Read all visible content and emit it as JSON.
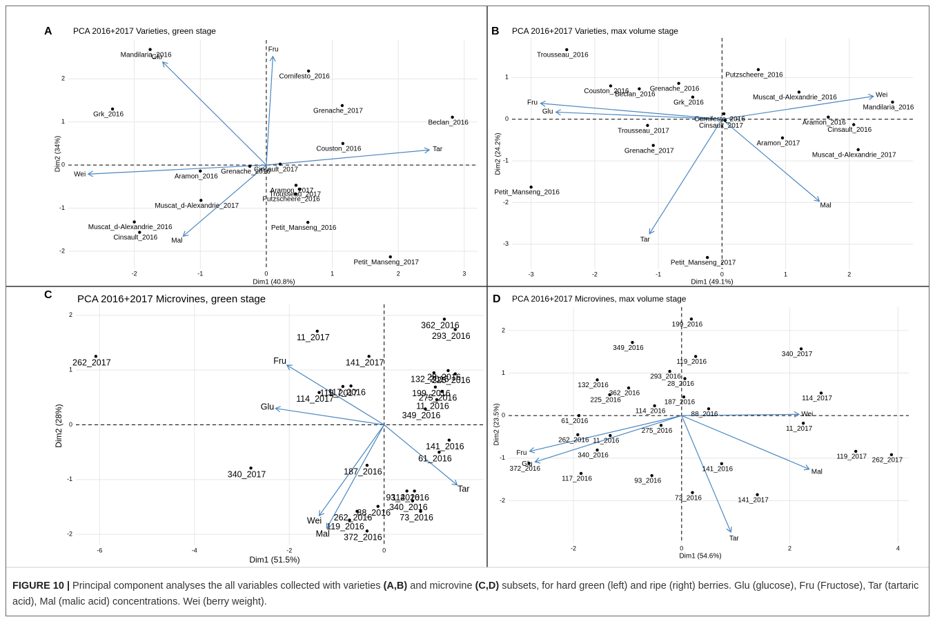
{
  "chart_data": [
    {
      "type": "biplot",
      "panel": "A",
      "title": "PCA 2016+2017 Varieties, green stage",
      "x_label": "Dim1 (40.8%)",
      "y_label": "Dim2 (34%)",
      "xlim": [
        -3,
        3.2
      ],
      "ylim": [
        -2.4,
        2.9
      ],
      "xticks": [
        -2,
        -1,
        0,
        1,
        2,
        3
      ],
      "yticks": [
        -2,
        -1,
        0,
        1,
        2
      ],
      "grid": true,
      "point_color": "#000000",
      "labels": [
        "Mandilaria_2016",
        "Grk_2016",
        "Cornifesto_2016",
        "Grenache_2017",
        "Beclan_2016",
        "Couston_2016",
        "Cinsault_2017",
        "Grenache_2016",
        "Aramon_2016",
        "Aramon_2017",
        "Trousseau_2017",
        "Putzscheere_2016",
        "Muscat_d-Alexandrie_2017",
        "Muscat_d-Alexandrie_2016",
        "Cinsault_2016",
        "Petit_Manseng_2016",
        "Petit_Manseng_2017"
      ],
      "x": [
        -1.76,
        -2.33,
        0.64,
        1.15,
        2.82,
        1.16,
        0.21,
        -0.25,
        -1.0,
        0.45,
        0.5,
        0.44,
        -0.99,
        -2.0,
        -1.92,
        0.63,
        1.88
      ],
      "y": [
        2.68,
        1.3,
        2.18,
        1.38,
        1.11,
        0.5,
        0.02,
        -0.03,
        -0.14,
        -0.47,
        -0.56,
        -0.67,
        -0.82,
        -1.32,
        -1.56,
        -1.33,
        -2.13
      ],
      "loadings": {
        "color": "#4a86c0",
        "labels": [
          "Glu",
          "Fru",
          "Tar",
          "Wei",
          "Mal"
        ],
        "x": [
          -1.57,
          0.1,
          2.47,
          -2.7,
          -1.26
        ],
        "y": [
          2.39,
          2.52,
          0.35,
          -0.21,
          -1.65
        ]
      }
    },
    {
      "type": "biplot",
      "panel": "B",
      "title": "PCA 2016+2017 Varieties, max volume stage",
      "x_label": "Dim1 (49.1%)",
      "y_label": "Dim2 (24.2%)",
      "xlim": [
        -3.3,
        3.0
      ],
      "ylim": [
        -3.6,
        1.95
      ],
      "xticks": [
        -3,
        -2,
        -1,
        0,
        1,
        2
      ],
      "yticks": [
        -3,
        -2,
        -1,
        0,
        1
      ],
      "grid": true,
      "point_color": "#000000",
      "labels": [
        "Trousseau_2016",
        "Couston_2016",
        "Beclan_2016",
        "Grenache_2016",
        "Grk_2016",
        "Putzscheere_2016",
        "Muscat_d-Alexandrie_2016",
        "Mandilaria_2016",
        "Cornifesto_2016",
        "Aramon_2016",
        "Cinsault_2016",
        "Trousseau_2017",
        "Cinsault_2017",
        "Aramon_2017",
        "Muscat_d-Alexandrie_2017",
        "Grenache_2017",
        "Petit_Manseng_2016",
        "Petit_Manseng_2017"
      ],
      "x": [
        -2.44,
        -1.75,
        -1.3,
        -0.68,
        -0.46,
        0.57,
        1.21,
        2.68,
        0.03,
        1.67,
        2.07,
        -1.17,
        0.05,
        0.95,
        2.14,
        -1.08,
        -3.0,
        -0.23
      ],
      "y": [
        1.67,
        0.8,
        0.73,
        0.86,
        0.53,
        1.19,
        0.65,
        0.41,
        0.13,
        0.05,
        -0.13,
        -0.15,
        -0.03,
        -0.45,
        -0.73,
        -0.63,
        -1.63,
        -3.32
      ],
      "loadings": {
        "color": "#4a86c0",
        "labels": [
          "Fru",
          "Glu",
          "Wei",
          "Mal",
          "Tar"
        ],
        "x": [
          -2.85,
          -2.61,
          2.38,
          1.53,
          -1.14
        ],
        "y": [
          0.38,
          0.17,
          0.55,
          -1.97,
          -2.75
        ]
      }
    },
    {
      "type": "biplot",
      "panel": "C",
      "title": "PCA 2016+2017 Microvines, green stage",
      "x_label": "Dim1 (51.5%)",
      "y_label": "Dim2 (28%)",
      "xlim": [
        -6.5,
        2.1
      ],
      "ylim": [
        -2.2,
        2.2
      ],
      "xticks": [
        -6,
        -4,
        -2,
        0
      ],
      "yticks": [
        -2,
        -1,
        0,
        1,
        2
      ],
      "grid": true,
      "point_color": "#000000",
      "labels": [
        "262_2017",
        "11_2017",
        "362_2016",
        "293_2016",
        "141_2017",
        "132_2016",
        "28_2016",
        "225_2016",
        "199_2016",
        "275_2016",
        "11_2016",
        "349_2016",
        "119_2017",
        "117_2016",
        "114_2017",
        "141_2016",
        "61_2016",
        "187_2016",
        "340_2017",
        "93_2016",
        "114_2016",
        "88_2016",
        "340_2016",
        "73_2016",
        "262_2016",
        "119_2016",
        "372_2016"
      ],
      "x": [
        -6.08,
        -1.41,
        1.27,
        1.5,
        -0.32,
        1.05,
        1.35,
        1.5,
        1.08,
        1.22,
        1.11,
        0.87,
        -0.87,
        -0.7,
        -1.37,
        1.37,
        1.16,
        -0.36,
        -2.81,
        0.48,
        0.64,
        -0.13,
        0.6,
        0.77,
        -0.57,
        -0.73,
        -0.36
      ],
      "y": [
        1.25,
        1.71,
        1.93,
        1.74,
        1.25,
        0.95,
        0.99,
        0.93,
        0.69,
        0.61,
        0.46,
        0.29,
        0.7,
        0.71,
        0.59,
        -0.28,
        -0.5,
        -0.74,
        -0.79,
        -1.21,
        -1.21,
        -1.49,
        -1.39,
        -1.58,
        -1.58,
        -1.74,
        -1.94
      ],
      "loadings": {
        "color": "#4a86c0",
        "labels": [
          "Fru",
          "Glu",
          "Tar",
          "Wei",
          "Mal"
        ],
        "x": [
          -2.05,
          -2.29,
          1.54,
          -1.37,
          -1.21
        ],
        "y": [
          1.09,
          0.3,
          -1.1,
          -1.66,
          -1.89
        ]
      }
    },
    {
      "type": "biplot",
      "panel": "D",
      "title": "PCA 2016+2017 Microvines, max volume stage",
      "x_label": "Dim1 (54.6%)",
      "y_label": "Dim2 (23.5%)",
      "xlim": [
        -3.2,
        4.2
      ],
      "ylim": [
        -3.0,
        2.55
      ],
      "xticks": [
        -2,
        0,
        2,
        4
      ],
      "yticks": [
        -2,
        -1,
        0,
        1,
        2
      ],
      "grid": true,
      "point_color": "#000000",
      "labels": [
        "199_2016",
        "349_2016",
        "119_2016",
        "340_2017",
        "293_2016",
        "132_2016",
        "362_2016",
        "28_2016",
        "187_2016",
        "225_2016",
        "88_2016",
        "114_2016",
        "114_2017",
        "61_2016",
        "11_2017",
        "262_2016",
        "11_2016",
        "275_2016",
        "340_2016",
        "372_2016",
        "117_2016",
        "93_2016",
        "141_2016",
        "73_2016",
        "141_2017",
        "119_2017",
        "262_2017"
      ],
      "x": [
        0.18,
        -0.91,
        0.26,
        2.21,
        -0.22,
        -1.56,
        -0.98,
        0.06,
        0.04,
        -1.33,
        0.5,
        -0.5,
        2.58,
        -1.9,
        2.25,
        -1.92,
        -1.32,
        -0.38,
        -1.56,
        -2.82,
        -1.86,
        -0.55,
        0.74,
        0.2,
        1.4,
        3.22,
        3.88
      ],
      "y": [
        2.27,
        1.72,
        1.39,
        1.57,
        1.04,
        0.84,
        0.65,
        0.87,
        0.44,
        0.49,
        0.16,
        0.23,
        0.53,
        0.0,
        -0.18,
        -0.45,
        -0.47,
        -0.23,
        -0.81,
        -1.12,
        -1.36,
        -1.41,
        -1.13,
        -1.81,
        -1.86,
        -0.84,
        -0.92
      ],
      "loadings": {
        "color": "#4a86c0",
        "labels": [
          "Wei",
          "Fru",
          "Glu",
          "Mal",
          "Tar"
        ],
        "x": [
          2.17,
          -2.81,
          -2.71,
          2.36,
          0.91
        ],
        "y": [
          0.03,
          -0.84,
          -1.09,
          -1.26,
          -2.74
        ]
      }
    }
  ],
  "caption": [
    "FIGURE 10 |",
    " Principal component analyses the all variables collected with varieties ",
    "(A,B)",
    " and microvine ",
    "(C,D)",
    " subsets, for hard green (left) and ripe (right) berries. Glu (glucose), Fru (Fructose), Tar (tartaric acid), Mal (malic acid) concentrations. Wei (berry weight)."
  ]
}
